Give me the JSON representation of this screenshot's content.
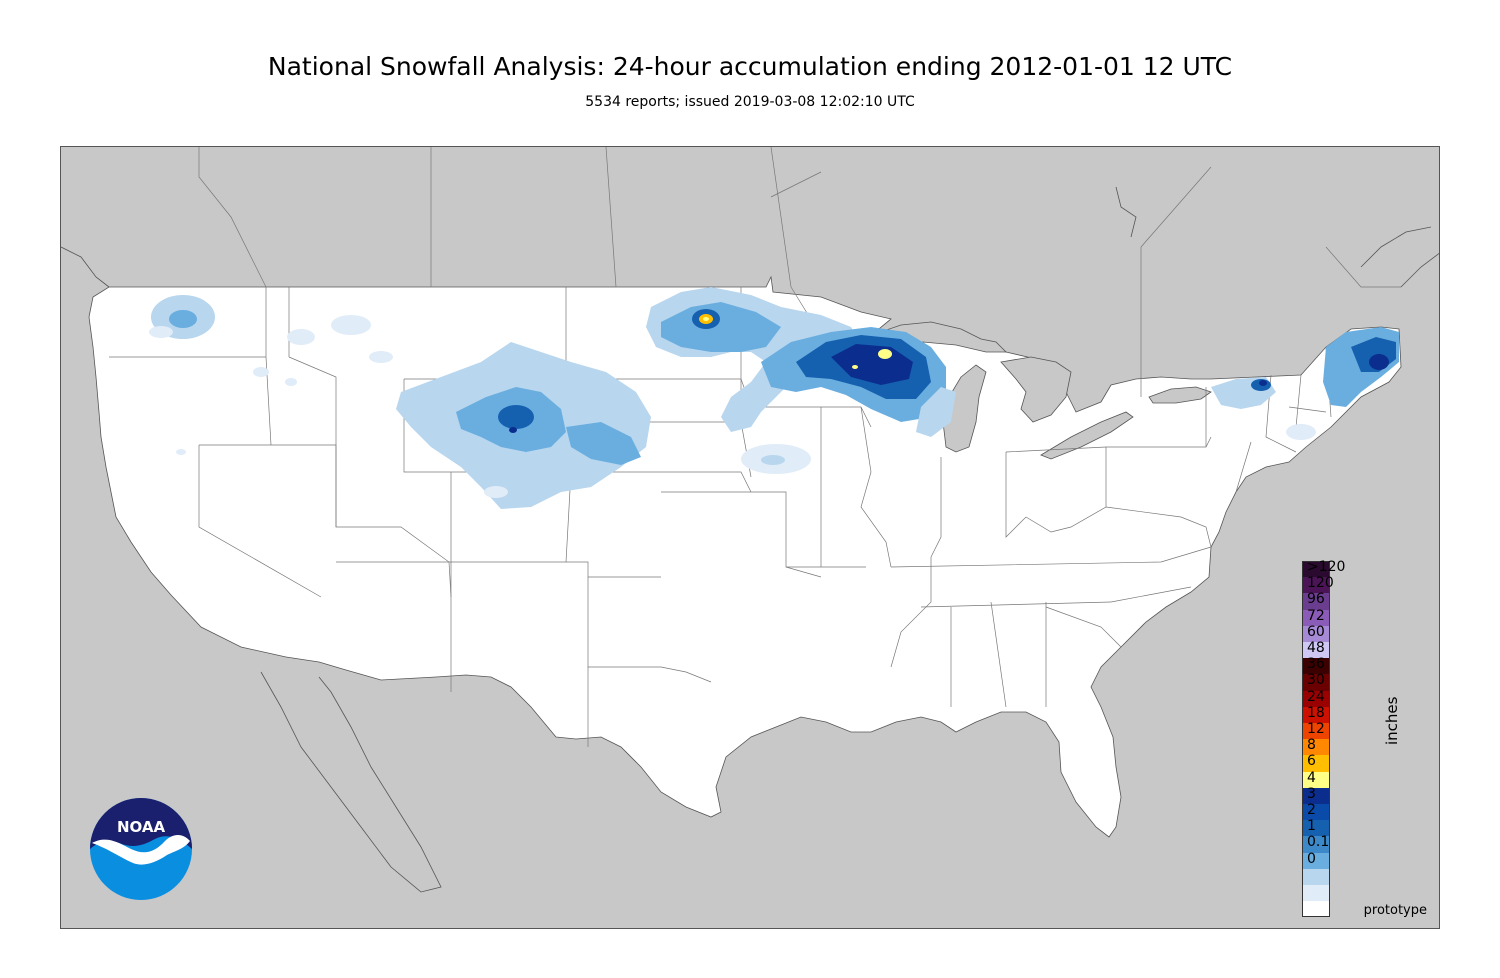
{
  "title": "National Snowfall Analysis: 24-hour accumulation ending 2012-01-01 12 UTC",
  "subtitle": "5534 reports; issued 2019-03-08 12:02:10 UTC",
  "map": {
    "prototype_label": "prototype",
    "land_color": "#ffffff",
    "outside_color": "#c8c8c8",
    "water_color": "#c8c8c8",
    "border_color": "#777777"
  },
  "logo": {
    "text": "NOAA",
    "dark_color": "#1a1f6e",
    "light_color": "#0a8ee0"
  },
  "legend": {
    "units": "inches",
    "bins": [
      {
        "label": ">120",
        "color": "#2a0a2e"
      },
      {
        "label": "120",
        "color": "#4b1456"
      },
      {
        "label": "96",
        "color": "#6a3d8f"
      },
      {
        "label": "72",
        "color": "#8a5cb8"
      },
      {
        "label": "60",
        "color": "#a68ad6"
      },
      {
        "label": "48",
        "color": "#cfc8f5"
      },
      {
        "label": "36",
        "color": "#3d0000"
      },
      {
        "label": "30",
        "color": "#6b0000"
      },
      {
        "label": "24",
        "color": "#9a0000"
      },
      {
        "label": "18",
        "color": "#cc1100"
      },
      {
        "label": "12",
        "color": "#ee4400"
      },
      {
        "label": "8",
        "color": "#ff8800"
      },
      {
        "label": "6",
        "color": "#ffbf00"
      },
      {
        "label": "4",
        "color": "#ffff88"
      },
      {
        "label": "3",
        "color": "#0b2e8e"
      },
      {
        "label": "2",
        "color": "#0a4aa8"
      },
      {
        "label": "1",
        "color": "#1561b0"
      },
      {
        "label": "0.1",
        "color": "#3d88c8"
      },
      {
        "label": "0",
        "color": "#6aaee0"
      },
      {
        "label": "",
        "color": "#b8d6ee"
      },
      {
        "label": "",
        "color": "#e0ecf8"
      },
      {
        "label": "",
        "color": "#ffffff"
      }
    ]
  }
}
